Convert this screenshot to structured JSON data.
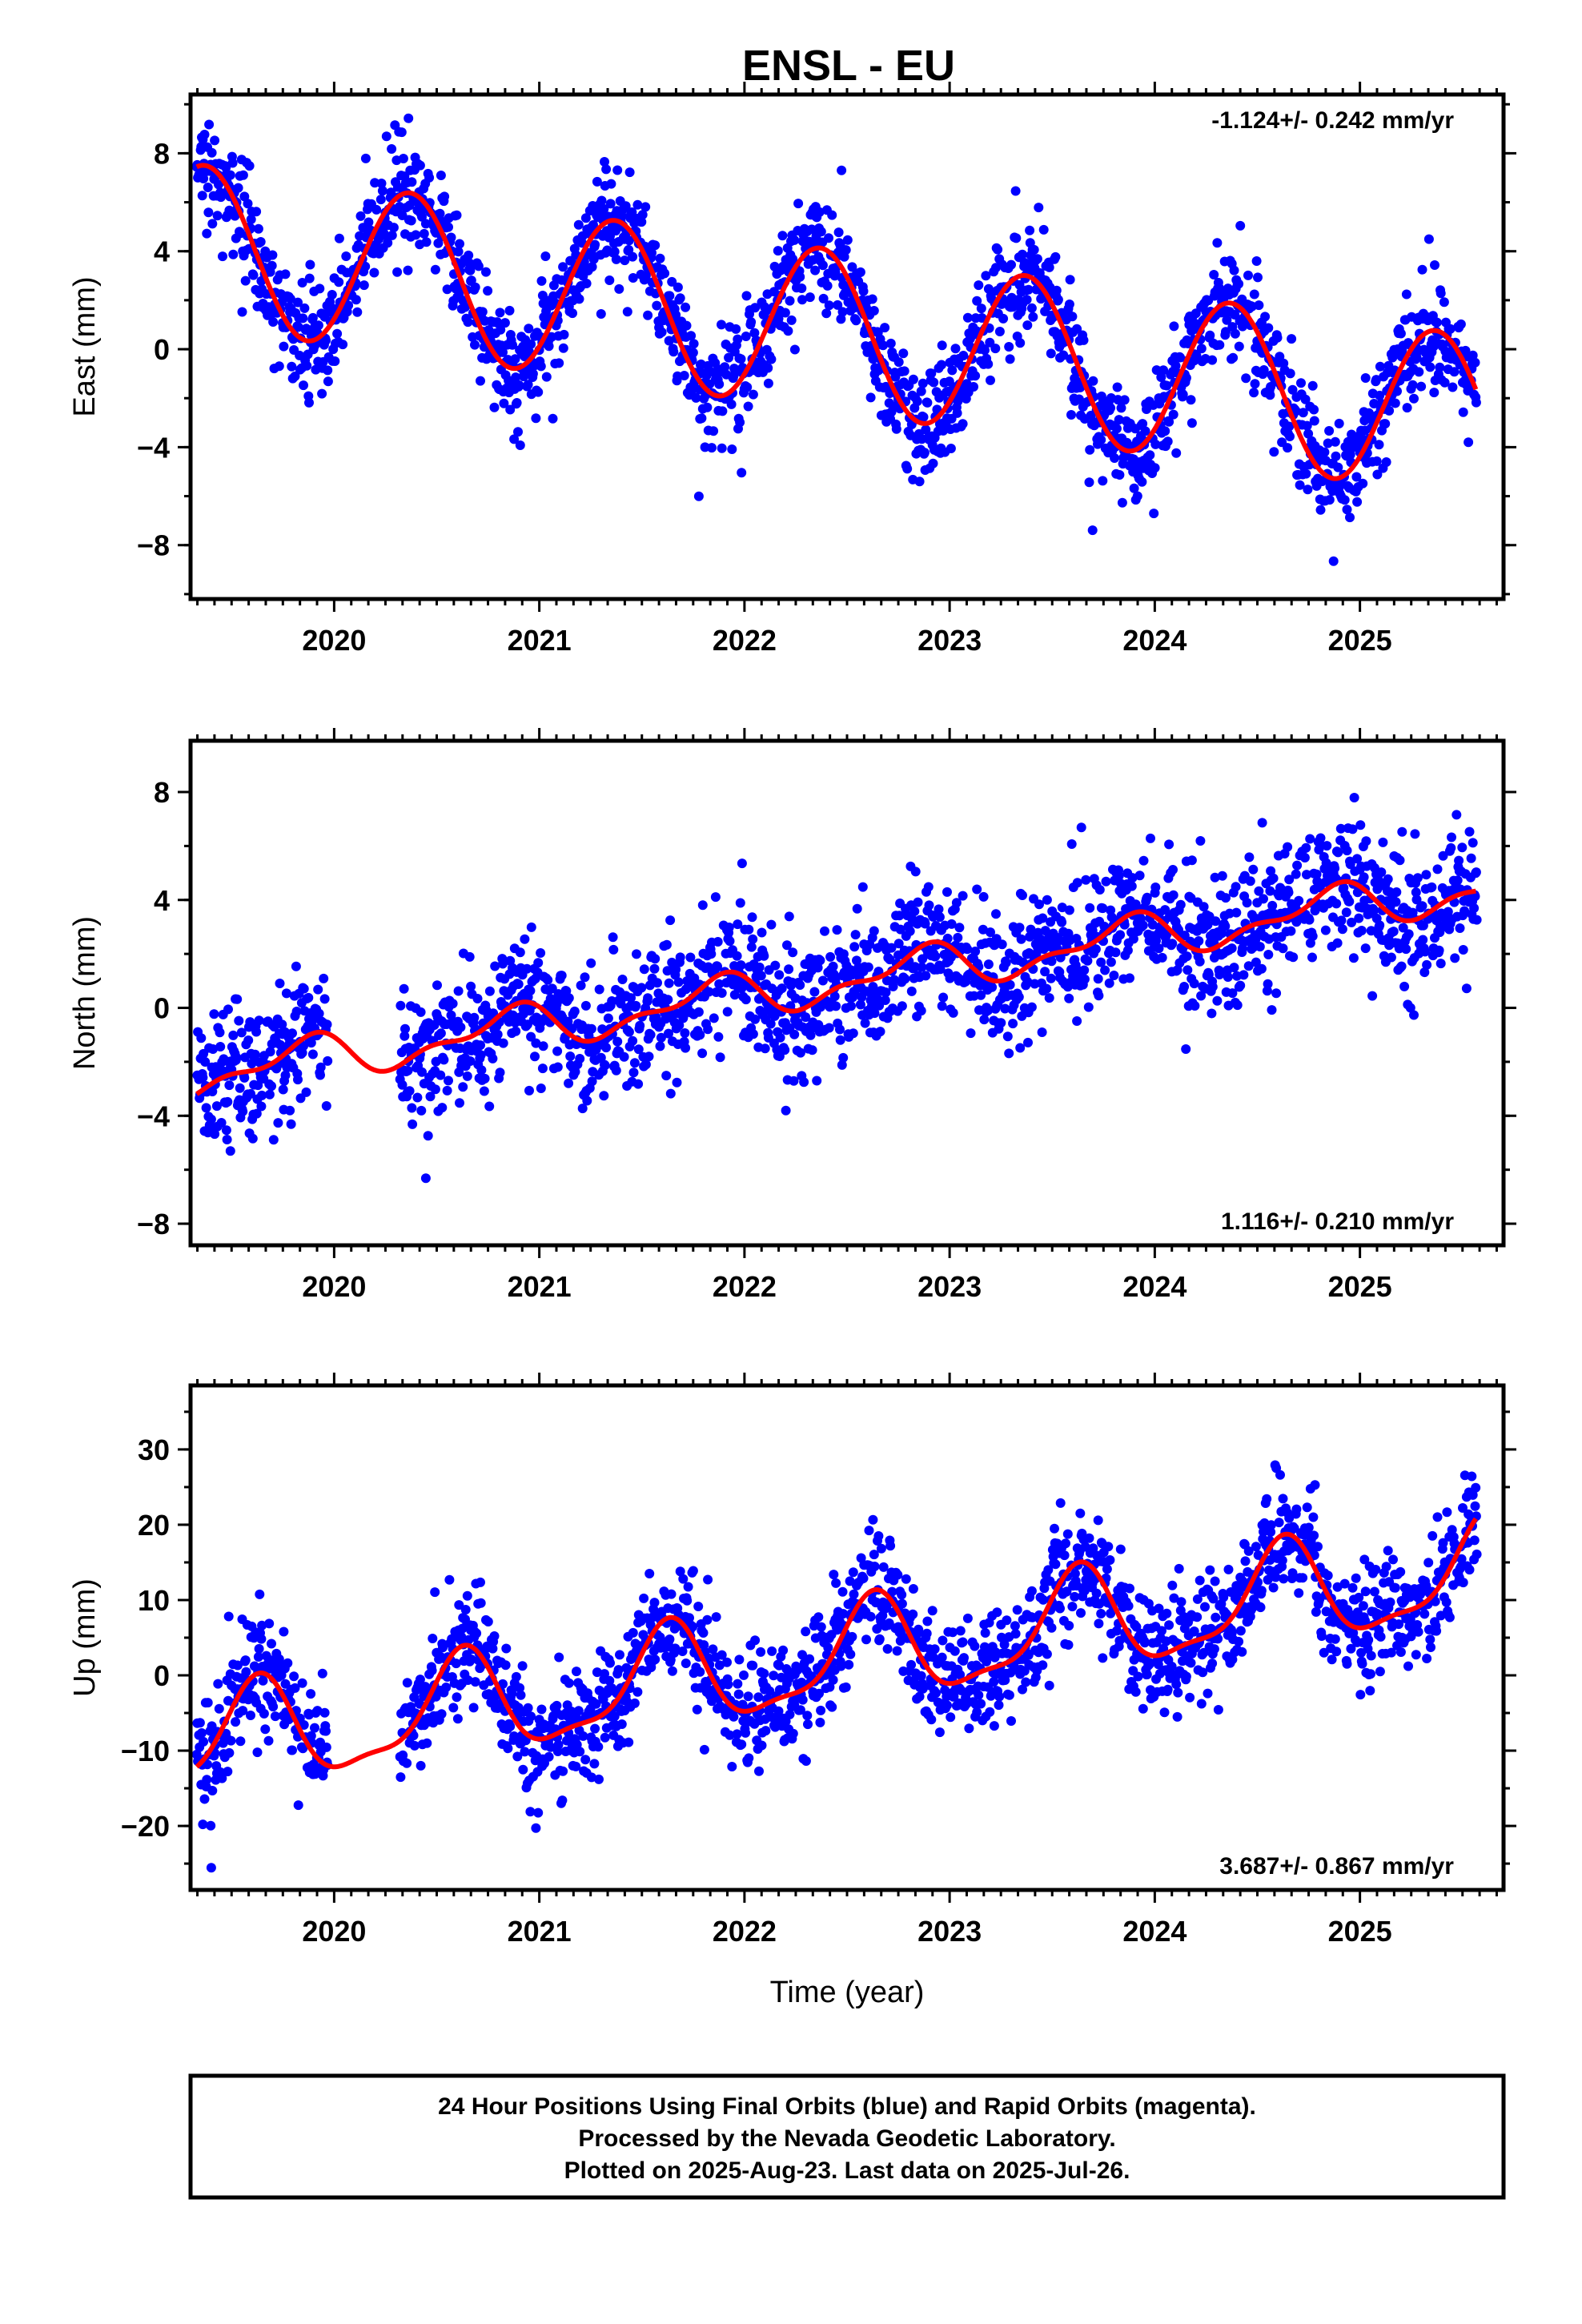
{
  "chart_data": [
    {
      "type": "scatter",
      "title": "ENSL - EU",
      "ylabel": "East (mm)",
      "xlabel": "",
      "rate_label": "-1.124+/- 0.242 mm/yr",
      "xlim": [
        2019.3,
        2025.7
      ],
      "ylim": [
        -10.2,
        10.4
      ],
      "yticks": [
        -8,
        -4,
        0,
        4,
        8
      ],
      "xticks": [
        2020,
        2021,
        2022,
        2023,
        2024,
        2025
      ],
      "series": [
        {
          "color": "#0000ff",
          "role": "daily positions (final orbits)"
        },
        {
          "color": "#ff0000",
          "role": "model fit"
        }
      ],
      "model": {
        "t0": 2019.35,
        "offset": 7.5,
        "trend": -1.124,
        "annual_amp": 3.3,
        "annual_peak": 2019.37,
        "semiannual_amp": 0.0,
        "semiannual_peak": 2019.4,
        "noise": 1.1,
        "data_start": 2019.33,
        "data_end": 2025.57,
        "gap": null
      }
    },
    {
      "type": "scatter",
      "title": "",
      "ylabel": "North (mm)",
      "xlabel": "",
      "rate_label": "1.116+/- 0.210 mm/yr",
      "xlim": [
        2019.3,
        2025.7
      ],
      "ylim": [
        -8.8,
        9.9
      ],
      "yticks": [
        -8,
        -4,
        0,
        4,
        8
      ],
      "xticks": [
        2020,
        2021,
        2022,
        2023,
        2024,
        2025
      ],
      "series": [
        {
          "color": "#0000ff",
          "role": "daily positions (final orbits)"
        },
        {
          "color": "#ff0000",
          "role": "model fit"
        }
      ],
      "model": {
        "t0": 2019.35,
        "offset": -3.2,
        "trend": 1.116,
        "annual_amp": 0.7,
        "annual_peak": 2019.85,
        "semiannual_amp": 0.35,
        "semiannual_peak": 2019.95,
        "noise": 1.2,
        "data_start": 2019.33,
        "data_end": 2025.57,
        "gap": [
          2019.97,
          2020.32
        ]
      }
    },
    {
      "type": "scatter",
      "title": "",
      "ylabel": "Up (mm)",
      "xlabel": "Time (year)",
      "rate_label": "3.687+/- 0.867 mm/yr",
      "xlim": [
        2019.3,
        2025.7
      ],
      "ylim": [
        -28.5,
        38.5
      ],
      "yticks": [
        -20,
        -10,
        0,
        10,
        20,
        30
      ],
      "xticks": [
        2020,
        2021,
        2022,
        2023,
        2024,
        2025
      ],
      "series": [
        {
          "color": "#0000ff",
          "role": "daily positions (final orbits)"
        },
        {
          "color": "#ff0000",
          "role": "model fit"
        }
      ],
      "model": {
        "t0": 2019.35,
        "offset": -10.0,
        "trend": 3.687,
        "annual_amp": 6.5,
        "annual_peak": 2019.62,
        "semiannual_amp": 2.0,
        "semiannual_peak": 2019.65,
        "noise": 3.8,
        "data_start": 2019.33,
        "data_end": 2025.57,
        "gap": [
          2019.97,
          2020.32
        ]
      }
    }
  ],
  "footer": {
    "line1": "24 Hour Positions Using Final Orbits (blue) and Rapid Orbits (magenta).",
    "line2": "Processed by the Nevada Geodetic Laboratory.",
    "line3": "Plotted on 2025-Aug-23. Last data on 2025-Jul-26."
  }
}
